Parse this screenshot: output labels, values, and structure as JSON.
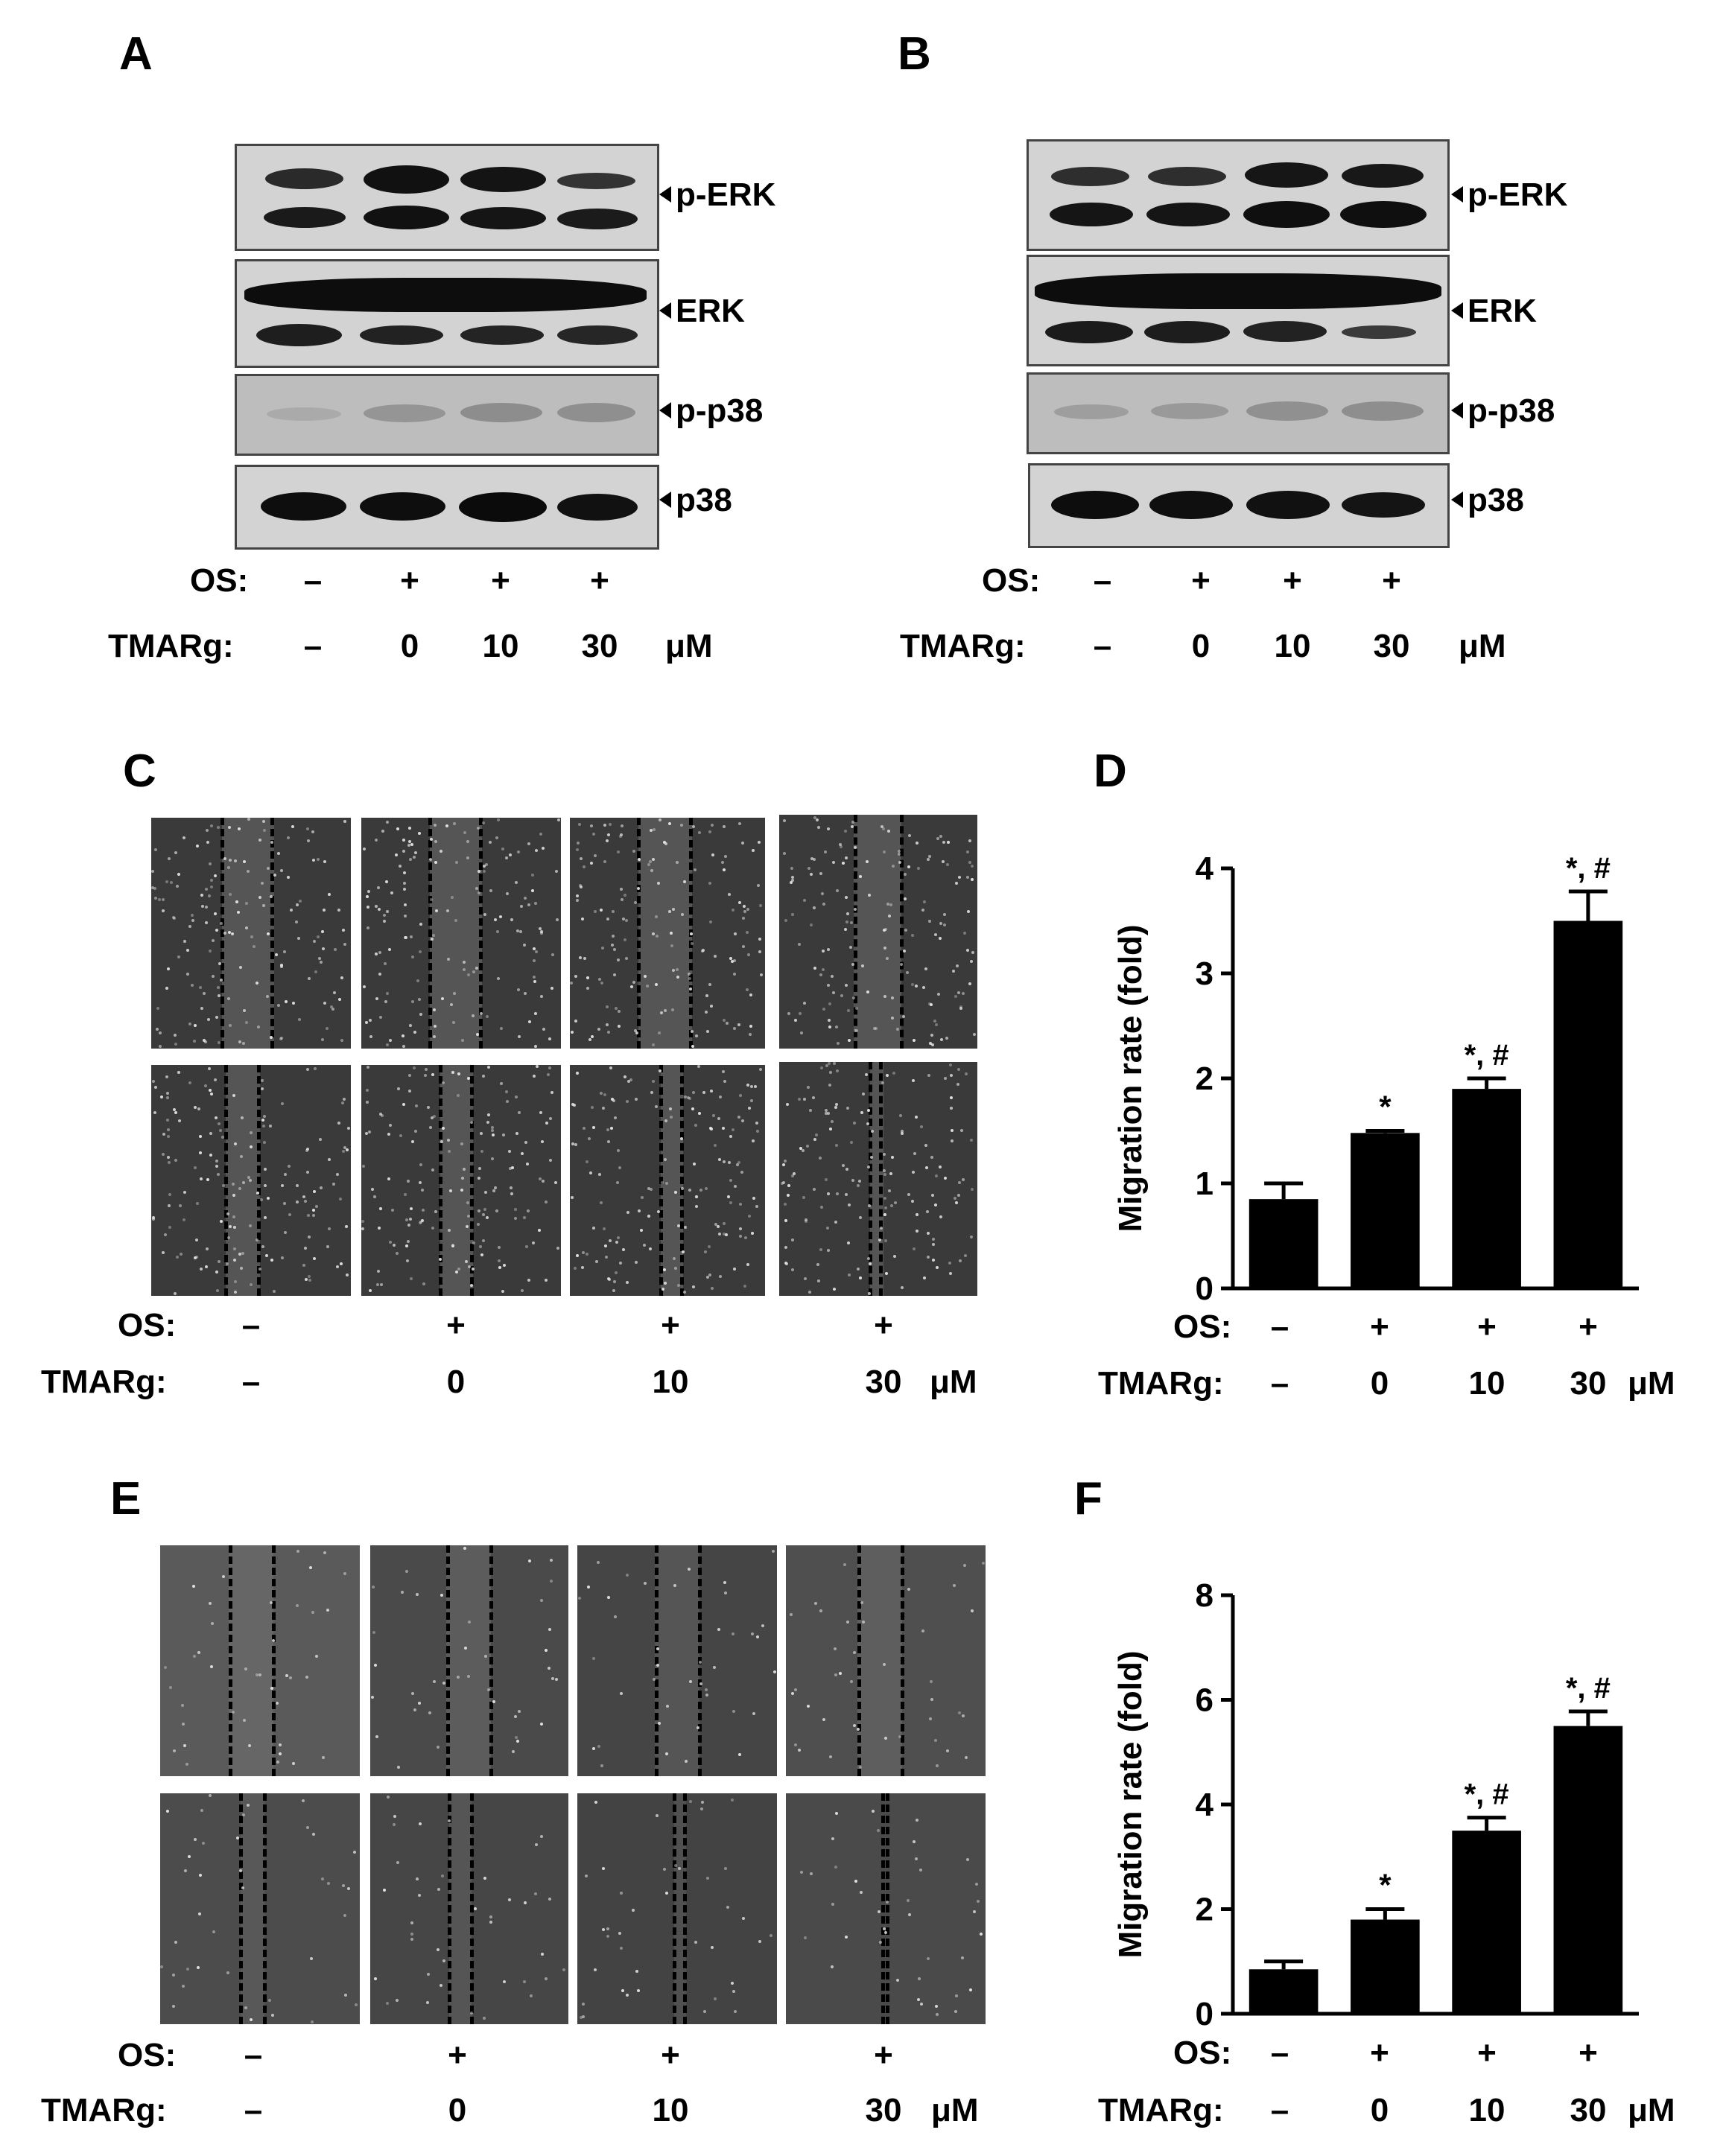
{
  "panels": {
    "A": {
      "label": "A"
    },
    "B": {
      "label": "B"
    },
    "C": {
      "label": "C"
    },
    "D": {
      "label": "D"
    },
    "E": {
      "label": "E"
    },
    "F": {
      "label": "F"
    }
  },
  "blots": {
    "rows": [
      {
        "label": "p-ERK"
      },
      {
        "label": "ERK"
      },
      {
        "label": "p-p38"
      },
      {
        "label": "p38"
      }
    ]
  },
  "conditions": {
    "os_label": "OS:",
    "tmarg_label": "TMARg:",
    "unit": "μM",
    "os": [
      "–",
      "+",
      "+",
      "+"
    ],
    "tmarg": [
      "–",
      "0",
      "10",
      "30"
    ]
  },
  "chart_data": [
    {
      "type": "bar",
      "panel": "D",
      "categories": [
        "–/–",
        "+/0",
        "+/10",
        "+/30"
      ],
      "values": [
        0.85,
        1.48,
        1.9,
        3.5
      ],
      "errors": [
        0.15,
        0.02,
        0.1,
        0.28
      ],
      "annotations": [
        "",
        "*",
        "*,#",
        "*,#"
      ],
      "ylabel": "Migration  rate (fold)",
      "ylim": [
        0,
        4
      ],
      "yticks": [
        0,
        1,
        2,
        3,
        4
      ]
    },
    {
      "type": "bar",
      "panel": "F",
      "categories": [
        "–/–",
        "+/0",
        "+/10",
        "+/30"
      ],
      "values": [
        0.85,
        1.8,
        3.5,
        5.5
      ],
      "errors": [
        0.15,
        0.2,
        0.25,
        0.28
      ],
      "annotations": [
        "",
        "*",
        "*,#",
        "*,#"
      ],
      "ylabel": "Migration  rate (fold)",
      "ylim": [
        0,
        8
      ],
      "yticks": [
        0,
        2,
        4,
        6,
        8
      ]
    }
  ]
}
